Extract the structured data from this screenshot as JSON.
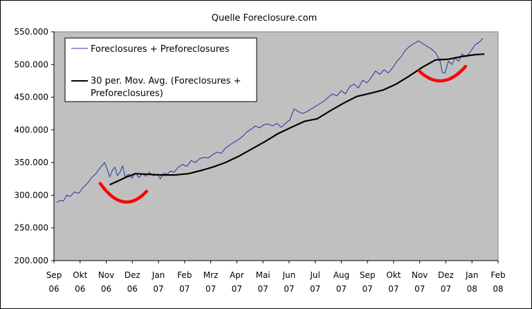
{
  "chart_data": {
    "type": "line",
    "title": "Quelle Foreclosure.com",
    "xlabel": "",
    "ylabel": "",
    "ylim": [
      200000,
      550000
    ],
    "yticks": [
      200000,
      250000,
      300000,
      350000,
      400000,
      450000,
      500000,
      550000
    ],
    "ytick_labels": [
      "200.000",
      "250.000",
      "300.000",
      "350.000",
      "400.000",
      "450.000",
      "500.000",
      "550.000"
    ],
    "xlim": [
      "2006-09-01",
      "2008-02-01"
    ],
    "xtick_labels": [
      [
        "Sep",
        "06"
      ],
      [
        "Okt",
        "06"
      ],
      [
        "Nov",
        "06"
      ],
      [
        "Dez",
        "06"
      ],
      [
        "Jan",
        "07"
      ],
      [
        "Feb",
        "07"
      ],
      [
        "Mrz",
        "07"
      ],
      [
        "Apr",
        "07"
      ],
      [
        "Mai",
        "07"
      ],
      [
        "Jun",
        "07"
      ],
      [
        "Jul",
        "07"
      ],
      [
        "Aug",
        "07"
      ],
      [
        "Sep",
        "07"
      ],
      [
        "Okt",
        "07"
      ],
      [
        "Nov",
        "07"
      ],
      [
        "Dez",
        "07"
      ],
      [
        "Jan",
        "08"
      ],
      [
        "Feb",
        "08"
      ]
    ],
    "grid": false,
    "legend_position": "top-left",
    "series": [
      {
        "name": "Foreclosures + Preforeclosures",
        "color": "#1f2fa8",
        "points": [
          [
            "2006-09-04",
            289000
          ],
          [
            "2006-09-08",
            292000
          ],
          [
            "2006-09-12",
            291000
          ],
          [
            "2006-09-16",
            300000
          ],
          [
            "2006-09-20",
            298000
          ],
          [
            "2006-09-25",
            305000
          ],
          [
            "2006-09-30",
            303000
          ],
          [
            "2006-10-05",
            312000
          ],
          [
            "2006-10-10",
            318000
          ],
          [
            "2006-10-15",
            327000
          ],
          [
            "2006-10-20",
            333000
          ],
          [
            "2006-10-25",
            342000
          ],
          [
            "2006-10-30",
            350000
          ],
          [
            "2006-11-02",
            340000
          ],
          [
            "2006-11-05",
            328000
          ],
          [
            "2006-11-08",
            338000
          ],
          [
            "2006-11-11",
            343000
          ],
          [
            "2006-11-14",
            330000
          ],
          [
            "2006-11-17",
            335000
          ],
          [
            "2006-11-20",
            345000
          ],
          [
            "2006-11-23",
            328000
          ],
          [
            "2006-11-27",
            332000
          ],
          [
            "2006-12-01",
            326000
          ],
          [
            "2006-12-05",
            334000
          ],
          [
            "2006-12-09",
            327000
          ],
          [
            "2006-12-13",
            333000
          ],
          [
            "2006-12-17",
            329000
          ],
          [
            "2006-12-21",
            335000
          ],
          [
            "2006-12-26",
            330000
          ],
          [
            "2006-12-31",
            332000
          ],
          [
            "2007-01-03",
            325000
          ],
          [
            "2007-01-07",
            334000
          ],
          [
            "2007-01-11",
            332000
          ],
          [
            "2007-01-15",
            337000
          ],
          [
            "2007-01-19",
            335000
          ],
          [
            "2007-01-24",
            343000
          ],
          [
            "2007-01-29",
            347000
          ],
          [
            "2007-02-03",
            344000
          ],
          [
            "2007-02-08",
            353000
          ],
          [
            "2007-02-13",
            350000
          ],
          [
            "2007-02-18",
            356000
          ],
          [
            "2007-02-23",
            358000
          ],
          [
            "2007-02-28",
            357000
          ],
          [
            "2007-03-05",
            362000
          ],
          [
            "2007-03-10",
            366000
          ],
          [
            "2007-03-15",
            364000
          ],
          [
            "2007-03-20",
            372000
          ],
          [
            "2007-03-25",
            377000
          ],
          [
            "2007-03-30",
            381000
          ],
          [
            "2007-04-04",
            385000
          ],
          [
            "2007-04-09",
            390000
          ],
          [
            "2007-04-14",
            397000
          ],
          [
            "2007-04-19",
            401000
          ],
          [
            "2007-04-24",
            406000
          ],
          [
            "2007-04-29",
            403000
          ],
          [
            "2007-05-04",
            408000
          ],
          [
            "2007-05-09",
            409000
          ],
          [
            "2007-05-14",
            406000
          ],
          [
            "2007-05-19",
            410000
          ],
          [
            "2007-05-24",
            404000
          ],
          [
            "2007-05-29",
            410000
          ],
          [
            "2007-06-03",
            415000
          ],
          [
            "2007-06-08",
            432000
          ],
          [
            "2007-06-13",
            428000
          ],
          [
            "2007-06-18",
            425000
          ],
          [
            "2007-06-23",
            428000
          ],
          [
            "2007-06-28",
            432000
          ],
          [
            "2007-07-03",
            436000
          ],
          [
            "2007-07-08",
            440000
          ],
          [
            "2007-07-13",
            444000
          ],
          [
            "2007-07-18",
            450000
          ],
          [
            "2007-07-23",
            455000
          ],
          [
            "2007-07-28",
            452000
          ],
          [
            "2007-08-02",
            460000
          ],
          [
            "2007-08-07",
            455000
          ],
          [
            "2007-08-12",
            466000
          ],
          [
            "2007-08-17",
            470000
          ],
          [
            "2007-08-22",
            464000
          ],
          [
            "2007-08-27",
            476000
          ],
          [
            "2007-09-01",
            472000
          ],
          [
            "2007-09-06",
            480000
          ],
          [
            "2007-09-11",
            490000
          ],
          [
            "2007-09-16",
            485000
          ],
          [
            "2007-09-21",
            492000
          ],
          [
            "2007-09-26",
            487000
          ],
          [
            "2007-10-01",
            495000
          ],
          [
            "2007-10-06",
            505000
          ],
          [
            "2007-10-11",
            512000
          ],
          [
            "2007-10-16",
            522000
          ],
          [
            "2007-10-21",
            528000
          ],
          [
            "2007-10-26",
            532000
          ],
          [
            "2007-10-31",
            536000
          ],
          [
            "2007-11-05",
            532000
          ],
          [
            "2007-11-10",
            528000
          ],
          [
            "2007-11-15",
            524000
          ],
          [
            "2007-11-20",
            518000
          ],
          [
            "2007-11-25",
            507000
          ],
          [
            "2007-11-28",
            488000
          ],
          [
            "2007-12-01",
            487000
          ],
          [
            "2007-12-05",
            505000
          ],
          [
            "2007-12-09",
            500000
          ],
          [
            "2007-12-13",
            510000
          ],
          [
            "2007-12-17",
            505000
          ],
          [
            "2007-12-21",
            516000
          ],
          [
            "2007-12-26",
            512000
          ],
          [
            "2007-12-31",
            520000
          ],
          [
            "2008-01-05",
            530000
          ],
          [
            "2008-01-10",
            534000
          ],
          [
            "2008-01-14",
            540000
          ]
        ]
      },
      {
        "name": "30 per. Mov. Avg. (Foreclosures + Preforeclosures)",
        "color": "#000000",
        "points": [
          [
            "2006-11-05",
            316000
          ],
          [
            "2006-11-15",
            322000
          ],
          [
            "2006-11-25",
            328000
          ],
          [
            "2006-12-05",
            333000
          ],
          [
            "2006-12-20",
            332000
          ],
          [
            "2007-01-05",
            331000
          ],
          [
            "2007-01-20",
            331000
          ],
          [
            "2007-02-05",
            333000
          ],
          [
            "2007-02-20",
            338000
          ],
          [
            "2007-03-05",
            343000
          ],
          [
            "2007-03-20",
            350000
          ],
          [
            "2007-04-05",
            360000
          ],
          [
            "2007-04-20",
            371000
          ],
          [
            "2007-05-05",
            382000
          ],
          [
            "2007-05-20",
            394000
          ],
          [
            "2007-06-05",
            404000
          ],
          [
            "2007-06-20",
            413000
          ],
          [
            "2007-07-05",
            417000
          ],
          [
            "2007-07-20",
            429000
          ],
          [
            "2007-08-05",
            441000
          ],
          [
            "2007-08-20",
            451000
          ],
          [
            "2007-09-05",
            456000
          ],
          [
            "2007-09-20",
            461000
          ],
          [
            "2007-10-05",
            470000
          ],
          [
            "2007-10-20",
            482000
          ],
          [
            "2007-11-05",
            496000
          ],
          [
            "2007-11-20",
            507000
          ],
          [
            "2007-12-05",
            508000
          ],
          [
            "2007-12-20",
            512000
          ],
          [
            "2008-01-05",
            515000
          ],
          [
            "2008-01-16",
            516000
          ]
        ]
      }
    ],
    "annotations": [
      {
        "type": "hand-drawn-arc",
        "color": "#ff0000",
        "span": [
          "2006-10-25",
          "2006-12-18"
        ],
        "values": [
          318000,
          290000,
          306000
        ]
      },
      {
        "type": "hand-drawn-arc",
        "color": "#ff0000",
        "span": [
          "2007-11-01",
          "2007-12-25"
        ],
        "values": [
          490000,
          475000,
          497000
        ]
      }
    ]
  }
}
